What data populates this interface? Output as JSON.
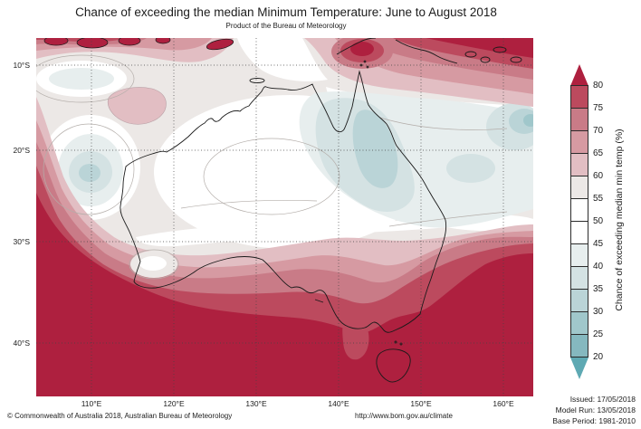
{
  "title": "Chance of exceeding the median Minimum Temperature: June to August 2018",
  "subtitle": "Product of the Bureau of Meteorology",
  "map": {
    "region": "Australia",
    "x_axis_ticks": [
      "110°E",
      "120°E",
      "130°E",
      "140°E",
      "150°E",
      "160°E"
    ],
    "y_axis_ticks": [
      "10°S",
      "20°S",
      "30°S",
      "40°S"
    ]
  },
  "colorbar": {
    "axis_label": "Chance of exceeding median min temp (%)",
    "tick_labels": [
      "80",
      "75",
      "70",
      "65",
      "60",
      "55",
      "50",
      "45",
      "40",
      "35",
      "30",
      "25",
      "20"
    ],
    "levels": [
      {
        "range": "> 80",
        "color": "#ae203f"
      },
      {
        "range": "75-80",
        "color": "#bc4a5e"
      },
      {
        "range": "70-75",
        "color": "#c97b87"
      },
      {
        "range": "65-70",
        "color": "#d69aa2"
      },
      {
        "range": "60-65",
        "color": "#e2bec3"
      },
      {
        "range": "55-60",
        "color": "#ece8e6"
      },
      {
        "range": "50-55",
        "color": "#ffffff"
      },
      {
        "range": "45-50",
        "color": "#ffffff"
      },
      {
        "range": "40-45",
        "color": "#e7eeee"
      },
      {
        "range": "35-40",
        "color": "#d4e2e3"
      },
      {
        "range": "30-35",
        "color": "#bad4d7"
      },
      {
        "range": "25-30",
        "color": "#a0c7cb"
      },
      {
        "range": "20-25",
        "color": "#85b8bf"
      },
      {
        "range": "< 20",
        "color": "#5ea9b3"
      }
    ]
  },
  "annotations": {
    "issued": "Issued: 17/05/2018",
    "model_run": "Model Run: 13/05/2018",
    "base_period": "Base Period: 1981-2010"
  },
  "footer": {
    "copyright": "© Commonwealth of Australia 2018, Australian Bureau of Meteorology",
    "url": "http://www.bom.gov.au/climate"
  },
  "chart_data": {
    "type": "heatmap",
    "subtype": "filled-contour-probability-map",
    "title": "Chance of exceeding the median Minimum Temperature: June to August 2018",
    "variable": "Chance of exceeding median min temp (%)",
    "contour_levels_percent": [
      20,
      25,
      30,
      35,
      40,
      45,
      50,
      55,
      60,
      65,
      70,
      75,
      80
    ],
    "lon_range_deg_east": [
      103.5,
      163.5
    ],
    "lat_range_deg_south": [
      7,
      45
    ],
    "gridlines": "dotted, every 10 degrees",
    "legend_position": "right",
    "palette": {
      "80": "#ae203f",
      "75": "#bc4a5e",
      "70": "#c97b87",
      "65": "#d69aa2",
      "60": "#e2bec3",
      "55": "#ece8e6",
      "50": "#ffffff",
      "45": "#ffffff",
      "40": "#e7eeee",
      "35": "#d4e2e3",
      "30": "#bad4d7",
      "25": "#a0c7cb",
      "20": "#85b8bf",
      "below20": "#5ea9b3"
    },
    "notable_regions": [
      {
        "area": "Far north (Indonesia, New Guinea, Torres Strait band along top edge)",
        "value_percent": "75 to >80"
      },
      {
        "area": "Southern Australia (southwest WA, southern SA, Victoria, Tasmania, far south NSW)",
        "value_percent": "> 80"
      },
      {
        "area": "West coast WA fringe",
        "value_percent": "60-80 gradient bands"
      },
      {
        "area": "Cape York Peninsula and Gulf Country QLD",
        "value_percent": "30-45 (blue)"
      },
      {
        "area": "Coral Sea at northeast map edge",
        "value_percent": "25-40 (blue)"
      },
      {
        "area": "Inland WA low near 115E 12S and 115E 20S",
        "value_percent": "30-45 (pale blue)"
      },
      {
        "area": "North-central pink patch near 116-119E, 12-14S",
        "value_percent": "60-65"
      },
      {
        "area": "Central interior of the continent",
        "value_percent": "45-55 (white, near even odds)"
      }
    ]
  }
}
